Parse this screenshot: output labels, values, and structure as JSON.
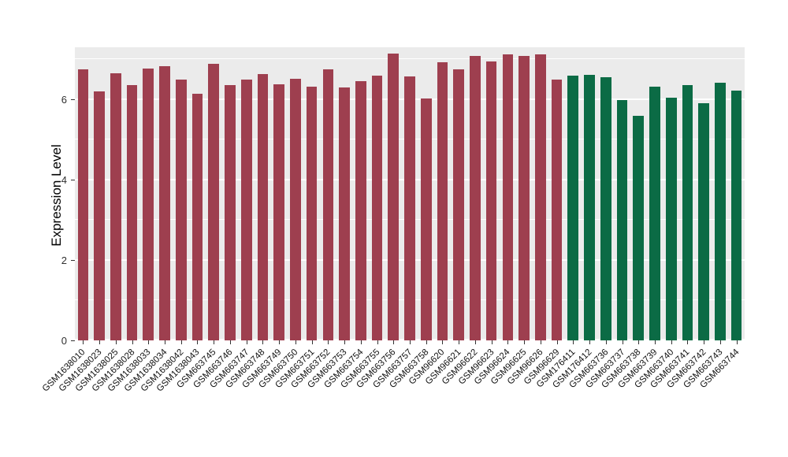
{
  "chart_data": {
    "type": "bar",
    "title": "",
    "xlabel": "",
    "ylabel": "Expression Level",
    "ylim": [
      0,
      7.3
    ],
    "yticks": [
      0,
      2,
      4,
      6
    ],
    "minor_ticks": [
      1,
      3,
      5,
      7
    ],
    "grid": "on",
    "legend": "none",
    "panel_bg": "#EBEBEB",
    "categories": [
      "GSM1638010",
      "GSM1638023",
      "GSM1638025",
      "GSM1638028",
      "GSM1638033",
      "GSM1638034",
      "GSM1638042",
      "GSM1638043",
      "GSM663745",
      "GSM663746",
      "GSM663747",
      "GSM663748",
      "GSM663749",
      "GSM663750",
      "GSM663751",
      "GSM663752",
      "GSM663753",
      "GSM663754",
      "GSM663755",
      "GSM663756",
      "GSM663757",
      "GSM663758",
      "GSM96620",
      "GSM96621",
      "GSM96622",
      "GSM96623",
      "GSM96624",
      "GSM96625",
      "GSM96626",
      "GSM96629",
      "GSM176411",
      "GSM176412",
      "GSM663736",
      "GSM663737",
      "GSM663738",
      "GSM663739",
      "GSM663740",
      "GSM663741",
      "GSM663742",
      "GSM663743",
      "GSM663744"
    ],
    "values": [
      6.75,
      6.2,
      6.65,
      6.35,
      6.78,
      6.82,
      6.5,
      6.15,
      6.88,
      6.35,
      6.5,
      6.63,
      6.38,
      6.52,
      6.32,
      6.75,
      6.3,
      6.45,
      6.6,
      7.15,
      6.58,
      6.02,
      6.92,
      6.75,
      7.08,
      6.95,
      7.12,
      7.08,
      7.12,
      6.5,
      6.6,
      6.62,
      6.55,
      5.98,
      5.6,
      6.32,
      6.05,
      6.35,
      5.9,
      6.42,
      6.22
    ],
    "group_split_index": 30,
    "colors": {
      "group1": "#9E3F4F",
      "group2": "#0B6B45"
    }
  }
}
